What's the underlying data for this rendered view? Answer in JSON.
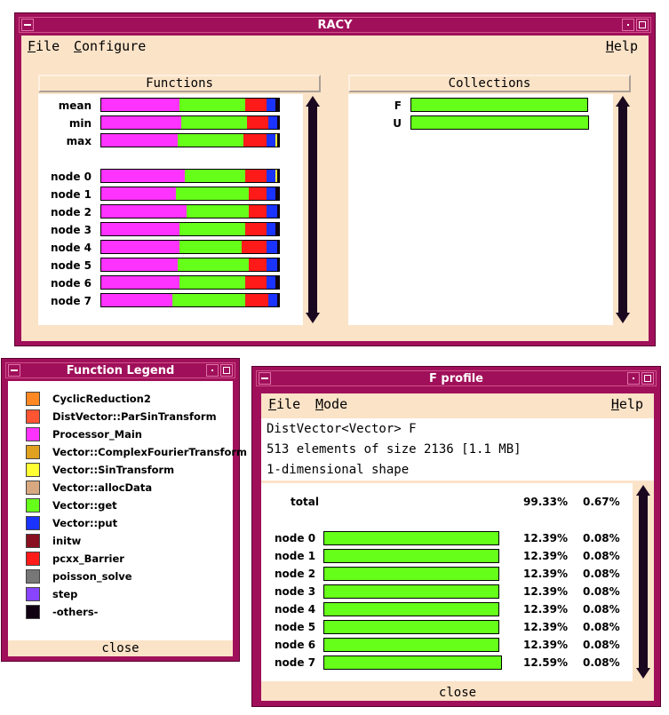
{
  "racy": {
    "title": "RACY",
    "menu": {
      "file": "File",
      "configure": "Configure",
      "help": "Help"
    },
    "functions_header": "Functions",
    "collections_header": "Collections",
    "function_rows": [
      {
        "label": "mean",
        "segments": [
          [
            0.44,
            "#ff33ff"
          ],
          [
            0.37,
            "#66ff1a"
          ],
          [
            0.12,
            "#ff1a1a"
          ],
          [
            0.05,
            "#1a33ff"
          ],
          [
            0.02,
            "#110011"
          ]
        ]
      },
      {
        "label": "min",
        "segments": [
          [
            0.45,
            "#ff33ff"
          ],
          [
            0.37,
            "#66ff1a"
          ],
          [
            0.12,
            "#ff1a1a"
          ],
          [
            0.05,
            "#1a33ff"
          ],
          [
            0.01,
            "#110011"
          ]
        ]
      },
      {
        "label": "max",
        "segments": [
          [
            0.43,
            "#ff33ff"
          ],
          [
            0.37,
            "#66ff1a"
          ],
          [
            0.13,
            "#ff1a1a"
          ],
          [
            0.05,
            "#1a33ff"
          ],
          [
            0.01,
            "#ffff33"
          ],
          [
            0.01,
            "#110011"
          ]
        ]
      },
      {
        "label": "node  0",
        "segments": [
          [
            0.47,
            "#ff33ff"
          ],
          [
            0.34,
            "#66ff1a"
          ],
          [
            0.12,
            "#ff1a1a"
          ],
          [
            0.05,
            "#1a33ff"
          ],
          [
            0.01,
            "#ffff33"
          ],
          [
            0.01,
            "#110011"
          ]
        ]
      },
      {
        "label": "node  1",
        "segments": [
          [
            0.42,
            "#ff33ff"
          ],
          [
            0.41,
            "#66ff1a"
          ],
          [
            0.1,
            "#ff1a1a"
          ],
          [
            0.05,
            "#1a33ff"
          ],
          [
            0.02,
            "#110011"
          ]
        ]
      },
      {
        "label": "node  2",
        "segments": [
          [
            0.48,
            "#ff33ff"
          ],
          [
            0.35,
            "#66ff1a"
          ],
          [
            0.1,
            "#ff1a1a"
          ],
          [
            0.06,
            "#1a33ff"
          ],
          [
            0.01,
            "#110011"
          ]
        ]
      },
      {
        "label": "node  3",
        "segments": [
          [
            0.44,
            "#ff33ff"
          ],
          [
            0.37,
            "#66ff1a"
          ],
          [
            0.12,
            "#ff1a1a"
          ],
          [
            0.05,
            "#1a33ff"
          ],
          [
            0.02,
            "#110011"
          ]
        ]
      },
      {
        "label": "node  4",
        "segments": [
          [
            0.44,
            "#ff33ff"
          ],
          [
            0.35,
            "#66ff1a"
          ],
          [
            0.14,
            "#ff1a1a"
          ],
          [
            0.06,
            "#1a33ff"
          ],
          [
            0.01,
            "#110011"
          ]
        ]
      },
      {
        "label": "node  5",
        "segments": [
          [
            0.43,
            "#ff33ff"
          ],
          [
            0.4,
            "#66ff1a"
          ],
          [
            0.1,
            "#ff1a1a"
          ],
          [
            0.06,
            "#1a33ff"
          ],
          [
            0.01,
            "#110011"
          ]
        ]
      },
      {
        "label": "node  6",
        "segments": [
          [
            0.44,
            "#ff33ff"
          ],
          [
            0.37,
            "#66ff1a"
          ],
          [
            0.12,
            "#ff1a1a"
          ],
          [
            0.05,
            "#1a33ff"
          ],
          [
            0.02,
            "#110011"
          ]
        ]
      },
      {
        "label": "node  7",
        "segments": [
          [
            0.4,
            "#ff33ff"
          ],
          [
            0.41,
            "#66ff1a"
          ],
          [
            0.13,
            "#ff1a1a"
          ],
          [
            0.05,
            "#1a33ff"
          ],
          [
            0.01,
            "#110011"
          ]
        ]
      }
    ],
    "collection_rows": [
      {
        "label": "F",
        "fraction": 0.995
      },
      {
        "label": "U",
        "fraction": 1.0
      }
    ]
  },
  "legend": {
    "title": "Function Legend",
    "close_label": "close",
    "items": [
      {
        "name": "CyclicReduction2",
        "color": "#ff8822"
      },
      {
        "name": "DistVector::ParSinTransform",
        "color": "#ff5533"
      },
      {
        "name": "Processor_Main",
        "color": "#ff33ff"
      },
      {
        "name": "Vector::ComplexFourierTransform",
        "color": "#e0a020"
      },
      {
        "name": "Vector::SinTransform",
        "color": "#ffff33"
      },
      {
        "name": "Vector::allocData",
        "color": "#d8a880"
      },
      {
        "name": "Vector::get",
        "color": "#66ff1a"
      },
      {
        "name": "Vector::put",
        "color": "#1a33ff"
      },
      {
        "name": "initw",
        "color": "#881020"
      },
      {
        "name": "pcxx_Barrier",
        "color": "#ff1a1a"
      },
      {
        "name": "poisson_solve",
        "color": "#777777"
      },
      {
        "name": "step",
        "color": "#8844ff"
      },
      {
        "name": "-others-",
        "color": "#110011"
      }
    ]
  },
  "profile": {
    "title": "F profile",
    "menu": {
      "file": "File",
      "mode": "Mode",
      "help": "Help"
    },
    "info": [
      "DistVector<Vector> F",
      "513 elements of size 2136 [1.1 MB]",
      "1-dimensional shape"
    ],
    "total": {
      "label": "total",
      "pct": "99.33%",
      "other": "0.67%"
    },
    "close_label": "close",
    "rows": [
      {
        "label": "node  0",
        "pct": "12.39%",
        "other": "0.08%",
        "fraction": 0.985
      },
      {
        "label": "node  1",
        "pct": "12.39%",
        "other": "0.08%",
        "fraction": 0.985
      },
      {
        "label": "node  2",
        "pct": "12.39%",
        "other": "0.08%",
        "fraction": 0.985
      },
      {
        "label": "node  3",
        "pct": "12.39%",
        "other": "0.08%",
        "fraction": 0.985
      },
      {
        "label": "node  4",
        "pct": "12.39%",
        "other": "0.08%",
        "fraction": 0.985
      },
      {
        "label": "node  5",
        "pct": "12.39%",
        "other": "0.08%",
        "fraction": 0.985
      },
      {
        "label": "node  6",
        "pct": "12.39%",
        "other": "0.08%",
        "fraction": 0.985
      },
      {
        "label": "node  7",
        "pct": "12.59%",
        "other": "0.08%",
        "fraction": 1.0
      }
    ]
  }
}
